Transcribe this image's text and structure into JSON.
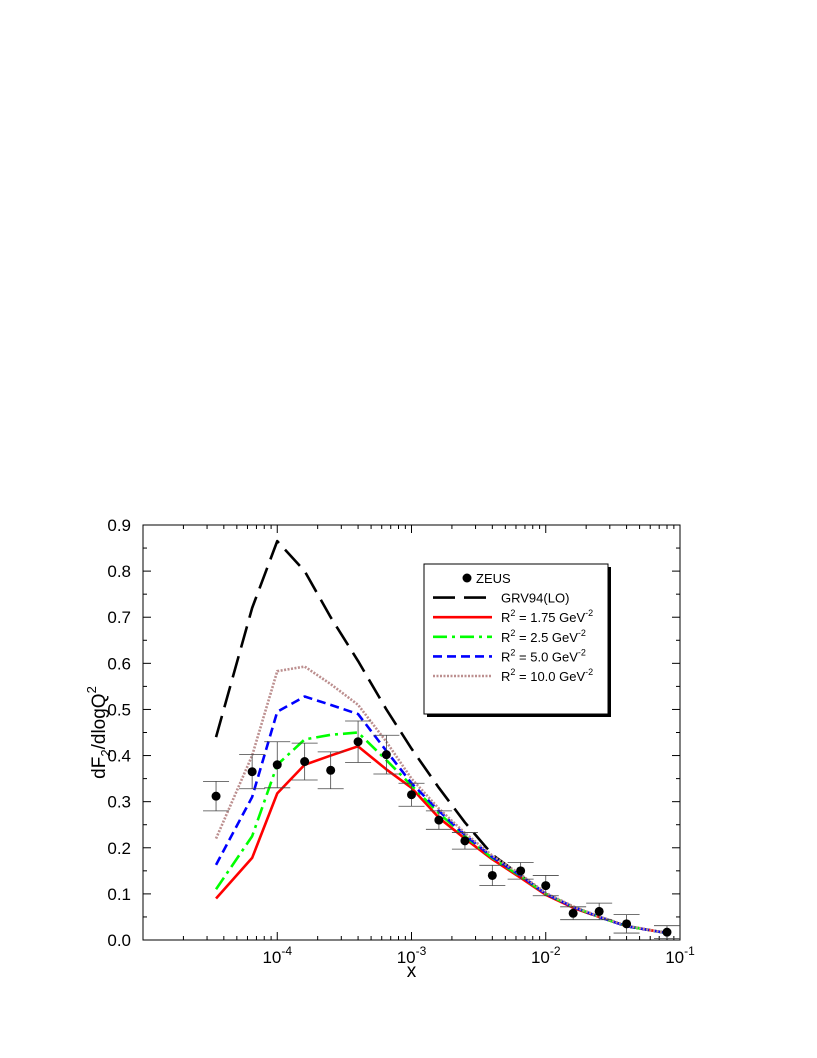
{
  "chart_data": {
    "type": "line",
    "title": "",
    "xlabel": "x",
    "ylabel": "dF2/dlogQ2",
    "ylabel_parts": {
      "main": "dF",
      "sub": "2",
      "mid": "/dlogQ",
      "sup": "2"
    },
    "x_scale": "log",
    "xlim": [
      1e-05,
      0.1
    ],
    "ylim": [
      0.0,
      0.9
    ],
    "x_ticks": [
      {
        "value": 0.0001,
        "base": "10",
        "exp": "-4"
      },
      {
        "value": 0.001,
        "base": "10",
        "exp": "-3"
      },
      {
        "value": 0.01,
        "base": "10",
        "exp": "-2"
      },
      {
        "value": 0.1,
        "base": "10",
        "exp": "-1"
      }
    ],
    "y_ticks": [
      "0.0",
      "0.1",
      "0.2",
      "0.3",
      "0.4",
      "0.5",
      "0.6",
      "0.7",
      "0.8",
      "0.9"
    ],
    "grid": false,
    "legend_position": "upper-right",
    "points": {
      "name": "ZEUS",
      "marker": "filled-circle",
      "color": "#000000",
      "data": [
        {
          "x": 3.5e-05,
          "y": 0.312,
          "err": 0.032
        },
        {
          "x": 6.5e-05,
          "y": 0.365,
          "err": 0.037
        },
        {
          "x": 0.0001,
          "y": 0.38,
          "err": 0.05
        },
        {
          "x": 0.00016,
          "y": 0.387,
          "err": 0.04
        },
        {
          "x": 0.00025,
          "y": 0.368,
          "err": 0.04
        },
        {
          "x": 0.0004,
          "y": 0.43,
          "err": 0.045
        },
        {
          "x": 0.00065,
          "y": 0.402,
          "err": 0.042
        },
        {
          "x": 0.001,
          "y": 0.315,
          "err": 0.025
        },
        {
          "x": 0.0016,
          "y": 0.26,
          "err": 0.02
        },
        {
          "x": 0.0025,
          "y": 0.215,
          "err": 0.018
        },
        {
          "x": 0.004,
          "y": 0.14,
          "err": 0.022
        },
        {
          "x": 0.0065,
          "y": 0.15,
          "err": 0.018
        },
        {
          "x": 0.01,
          "y": 0.118,
          "err": 0.022
        },
        {
          "x": 0.016,
          "y": 0.058,
          "err": 0.014
        },
        {
          "x": 0.025,
          "y": 0.062,
          "err": 0.018
        },
        {
          "x": 0.04,
          "y": 0.035,
          "err": 0.02
        },
        {
          "x": 0.08,
          "y": 0.017,
          "err": 0.014
        }
      ]
    },
    "series": [
      {
        "name": "GRV94(LO)",
        "color": "#000000",
        "dash": "22,9",
        "x": [
          3.5e-05,
          6.5e-05,
          0.0001,
          0.00016,
          0.00025,
          0.0004,
          0.00065,
          0.001,
          0.0016,
          0.0025,
          0.004,
          0.0065,
          0.01,
          0.016,
          0.025,
          0.04,
          0.08
        ],
        "y": [
          0.44,
          0.72,
          0.865,
          0.8,
          0.7,
          0.605,
          0.5,
          0.415,
          0.33,
          0.255,
          0.185,
          0.14,
          0.1,
          0.07,
          0.05,
          0.03,
          0.015
        ]
      },
      {
        "name": "R2 = 1.75 GeV-2",
        "label_parts": {
          "pre": "R",
          "sup1": "2",
          "mid": " = 1.75 GeV",
          "sup2": "-2"
        },
        "color": "#ff0000",
        "dash": "",
        "x": [
          3.5e-05,
          6.5e-05,
          0.0001,
          0.00016,
          0.00025,
          0.0004,
          0.00065,
          0.001,
          0.0016,
          0.0025,
          0.004,
          0.0065,
          0.01,
          0.016,
          0.025,
          0.04,
          0.08
        ],
        "y": [
          0.09,
          0.178,
          0.318,
          0.38,
          0.4,
          0.42,
          0.37,
          0.33,
          0.265,
          0.22,
          0.175,
          0.135,
          0.098,
          0.07,
          0.05,
          0.03,
          0.015
        ]
      },
      {
        "name": "R2 = 2.5  GeV-2",
        "label_parts": {
          "pre": "R",
          "sup1": "2",
          "mid": " = 2.5  GeV",
          "sup2": "-2"
        },
        "color": "#00ff00",
        "dash": "14,5,3,5",
        "x": [
          3.5e-05,
          6.5e-05,
          0.0001,
          0.00016,
          0.00025,
          0.0004,
          0.00065,
          0.001,
          0.0016,
          0.0025,
          0.004,
          0.0065,
          0.01,
          0.016,
          0.025,
          0.04,
          0.08
        ],
        "y": [
          0.11,
          0.225,
          0.38,
          0.435,
          0.445,
          0.45,
          0.39,
          0.335,
          0.275,
          0.225,
          0.178,
          0.138,
          0.1,
          0.072,
          0.05,
          0.03,
          0.015
        ]
      },
      {
        "name": "R2 = 5.0  GeV-2",
        "label_parts": {
          "pre": "R",
          "sup1": "2",
          "mid": " = 5.0  GeV",
          "sup2": "-2"
        },
        "color": "#0000ff",
        "dash": "9,5",
        "x": [
          3.5e-05,
          6.5e-05,
          0.0001,
          0.00016,
          0.00025,
          0.0004,
          0.00065,
          0.001,
          0.0016,
          0.0025,
          0.004,
          0.0065,
          0.01,
          0.016,
          0.025,
          0.04,
          0.08
        ],
        "y": [
          0.163,
          0.31,
          0.495,
          0.528,
          0.51,
          0.49,
          0.41,
          0.34,
          0.28,
          0.228,
          0.18,
          0.14,
          0.1,
          0.072,
          0.05,
          0.03,
          0.015
        ]
      },
      {
        "name": "R2 = 10.0 GeV-2",
        "label_parts": {
          "pre": "R",
          "sup1": "2",
          "mid": " = 10.0 GeV",
          "sup2": "-2"
        },
        "color": "#bc8f8f",
        "dash": "2,1.5",
        "x": [
          3.5e-05,
          6.5e-05,
          0.0001,
          0.00016,
          0.00025,
          0.0004,
          0.00065,
          0.001,
          0.0016,
          0.0025,
          0.004,
          0.0065,
          0.01,
          0.016,
          0.025,
          0.04,
          0.08
        ],
        "y": [
          0.22,
          0.4,
          0.583,
          0.593,
          0.555,
          0.51,
          0.43,
          0.35,
          0.285,
          0.232,
          0.183,
          0.142,
          0.102,
          0.073,
          0.051,
          0.031,
          0.015
        ]
      }
    ]
  }
}
